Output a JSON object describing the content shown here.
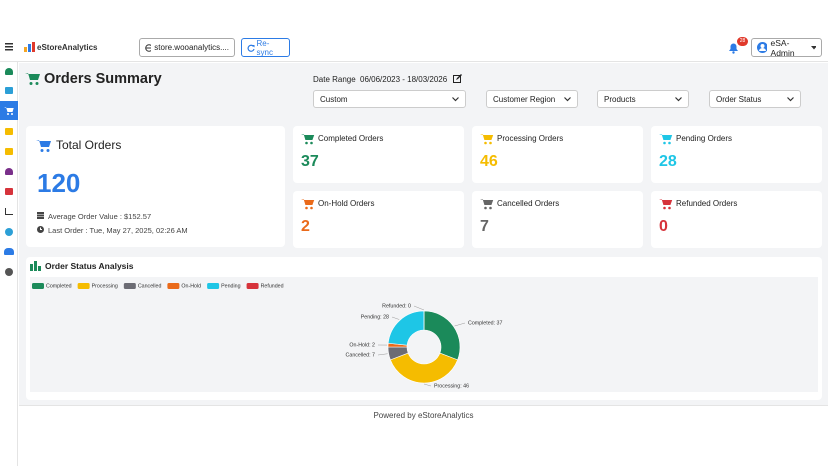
{
  "header": {
    "logo": "eStoreAnalytics",
    "store": "store.wooanalytics....",
    "resync": "Re-sync",
    "notifications": 28,
    "user": "eSA-Admin"
  },
  "summary": {
    "title": "Orders Summary",
    "date_range_label": "Date Range",
    "date_range": "06/06/2023 - 18/03/2026",
    "filters": [
      "Custom",
      "Customer Region",
      "Products",
      "Order Status"
    ]
  },
  "total": {
    "title": "Total Orders",
    "value": 120,
    "average": "Average Order Value : $152.57",
    "last_order": "Last Order : Tue, May 27, 2025, 02:26 AM"
  },
  "cards": [
    {
      "label": "Completed Orders",
      "value": 37,
      "color": "#1b8a5a"
    },
    {
      "label": "Processing Orders",
      "value": 46,
      "color": "#f5bc00"
    },
    {
      "label": "Pending Orders",
      "value": 28,
      "color": "#1ec6e6"
    },
    {
      "label": "On-Hold Orders",
      "value": 2,
      "color": "#ea6a1a"
    },
    {
      "label": "Cancelled Orders",
      "value": 7,
      "color": "#666666"
    },
    {
      "label": "Refunded Orders",
      "value": 0,
      "color": "#d6333b"
    }
  ],
  "chart_data": {
    "type": "pie",
    "title": "Order Status Analysis",
    "categories": [
      "Completed",
      "Processing",
      "Cancelled",
      "On-Hold",
      "Pending",
      "Refunded"
    ],
    "values": [
      37,
      46,
      7,
      2,
      28,
      0
    ],
    "value_labels": [
      "Completed: 37",
      "Processing: 46",
      "Cancelled: 7",
      "On-Hold: 2",
      "Pending: 28",
      "Refunded: 0"
    ],
    "colors": [
      "#1b8a5a",
      "#f5bc00",
      "#6c6c74",
      "#ea6a1a",
      "#1ec6e6",
      "#d6333b"
    ],
    "donut": true,
    "legend": "top-left"
  },
  "footer": "Powered by eStoreAnalytics"
}
